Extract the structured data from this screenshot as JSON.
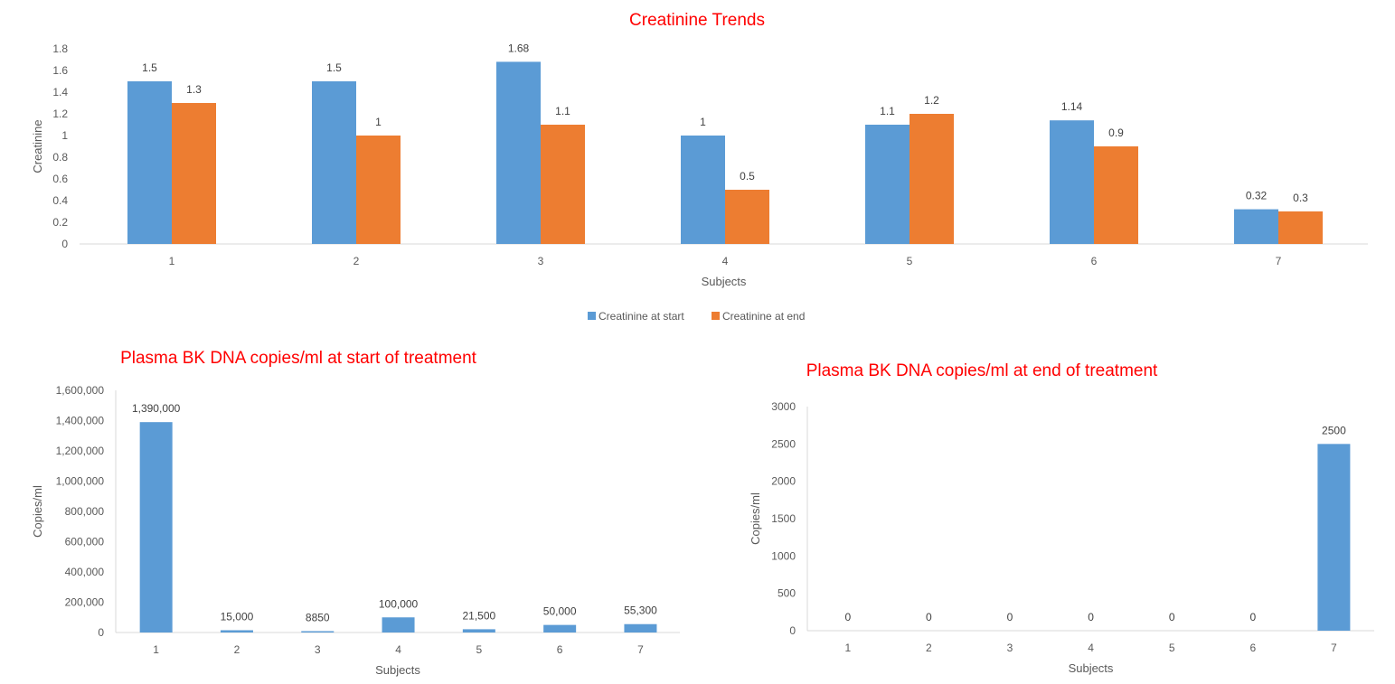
{
  "colors": {
    "title": "#ff0000",
    "series_start": "#5b9bd5",
    "series_end": "#ed7d31",
    "axis": "#d9d9d9"
  },
  "chart_data": [
    {
      "id": "creatinine",
      "type": "bar",
      "title": "Creatinine Trends",
      "xlabel": "Subjects",
      "ylabel": "Creatinine",
      "categories": [
        "1",
        "2",
        "3",
        "4",
        "5",
        "6",
        "7"
      ],
      "ylim": [
        0,
        1.8
      ],
      "yticks": [
        "0",
        "0.2",
        "0.4",
        "0.6",
        "0.8",
        "1",
        "1.2",
        "1.4",
        "1.6",
        "1.8"
      ],
      "grid": false,
      "legend_position": "bottom",
      "series": [
        {
          "name": "Creatinine at start",
          "values": [
            1.5,
            1.5,
            1.68,
            1,
            1.1,
            1.14,
            0.32
          ],
          "labels": [
            "1.5",
            "1.5",
            "1.68",
            "1",
            "1.1",
            "1.14",
            "0.32"
          ]
        },
        {
          "name": "Creatinine at end",
          "values": [
            1.3,
            1,
            1.1,
            0.5,
            1.2,
            0.9,
            0.3
          ],
          "labels": [
            "1.3",
            "1",
            "1.1",
            "0.5",
            "1.2",
            "0.9",
            "0.3"
          ]
        }
      ]
    },
    {
      "id": "bk-start",
      "type": "bar",
      "title": "Plasma BK DNA copies/ml at start of treatment",
      "xlabel": "Subjects",
      "ylabel": "Copies/ml",
      "categories": [
        "1",
        "2",
        "3",
        "4",
        "5",
        "6",
        "7"
      ],
      "ylim": [
        0,
        1600000
      ],
      "yticks": [
        "0",
        "200,000",
        "400,000",
        "600,000",
        "800,000",
        "1,000,000",
        "1,200,000",
        "1,400,000",
        "1,600,000"
      ],
      "grid": false,
      "series": [
        {
          "values": [
            1390000,
            15000,
            8850,
            100000,
            21500,
            50000,
            55300
          ],
          "labels": [
            "1,390,000",
            "15,000",
            "8850",
            "100,000",
            "21,500",
            "50,000",
            "55,300"
          ]
        }
      ]
    },
    {
      "id": "bk-end",
      "type": "bar",
      "title": "Plasma BK DNA copies/ml at end of treatment",
      "xlabel": "Subjects",
      "ylabel": "Copies/ml",
      "categories": [
        "1",
        "2",
        "3",
        "4",
        "5",
        "6",
        "7"
      ],
      "ylim": [
        0,
        3000
      ],
      "yticks": [
        "0",
        "500",
        "1000",
        "1500",
        "2000",
        "2500",
        "3000"
      ],
      "grid": false,
      "series": [
        {
          "values": [
            0,
            0,
            0,
            0,
            0,
            0,
            2500
          ],
          "labels": [
            "0",
            "0",
            "0",
            "0",
            "0",
            "0",
            "2500"
          ]
        }
      ]
    }
  ]
}
